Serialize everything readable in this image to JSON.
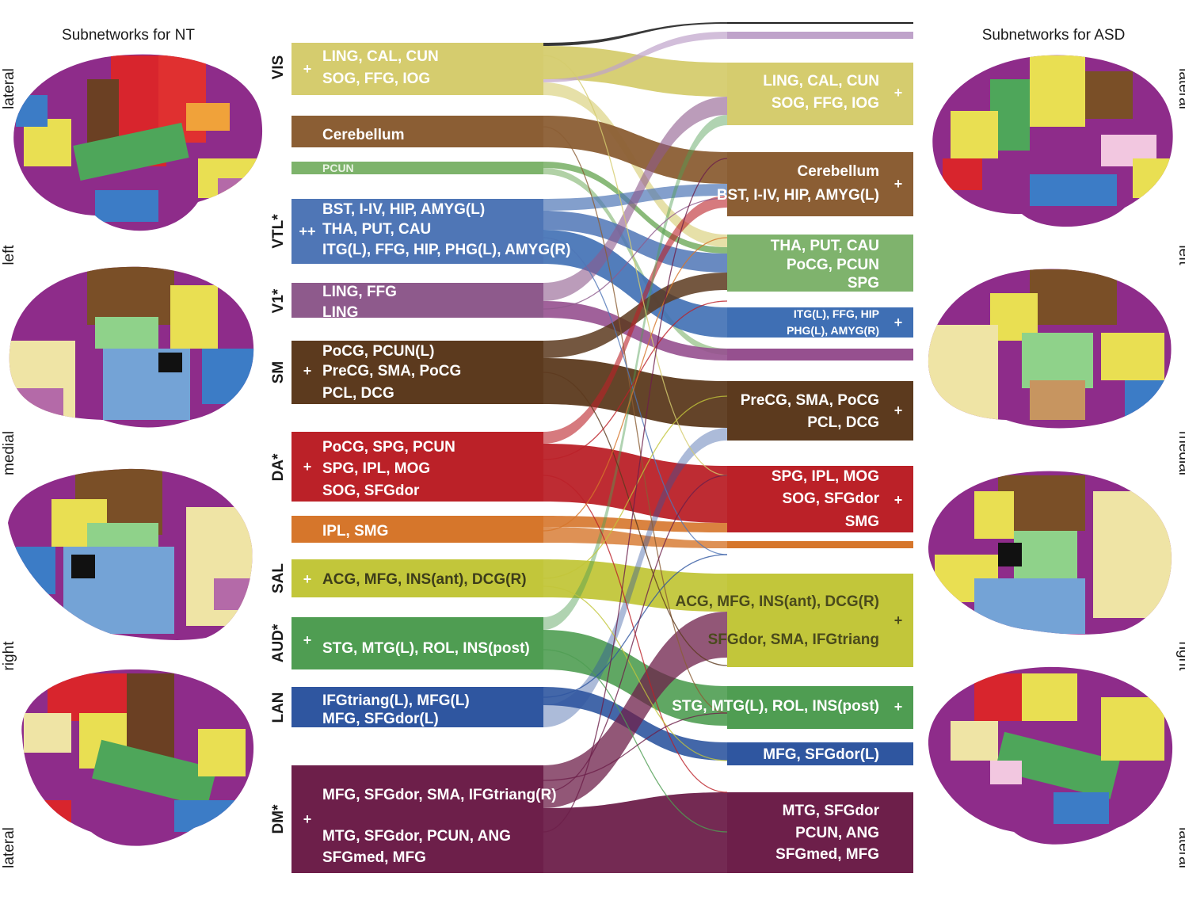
{
  "titles": {
    "left": "Subnetworks for NT",
    "right": "Subnetworks for ASD"
  },
  "view_labels": {
    "left": [
      "lateral",
      "left",
      "medial",
      "right",
      "lateral"
    ],
    "right": [
      "lateral",
      "left",
      "medial",
      "right",
      "lateral"
    ]
  },
  "colors": {
    "VIS": "#d5cc6e",
    "CER": "#8b5e34",
    "PCUN": "#7db36b",
    "VTL": "#4f76b6",
    "V1": "#8e5a8c",
    "SM": "#5c3a1e",
    "DA": "#bb2128",
    "SMG": "#d6762b",
    "SAL": "#c2c63a",
    "AUD": "#4f9d52",
    "LAN": "#2f56a0",
    "DM": "#6d1f4a",
    "ASD_BLACK": "#222222",
    "ASD_LILAC": "#bfa3ca",
    "ASD_VTL": "#3f6fb4",
    "ASD_V1": "#96508f",
    "ASD_GREEN": "#7fb36d",
    "ASD_LAN": "#2f56a0"
  },
  "left_groups": [
    {
      "name": "VIS",
      "marker": "+"
    },
    {
      "name": "VTL*",
      "marker": "++"
    },
    {
      "name": "V1*",
      "marker": ""
    },
    {
      "name": "SM",
      "marker": "+"
    },
    {
      "name": "DA*",
      "marker": "+"
    },
    {
      "name": "SAL",
      "marker": "+"
    },
    {
      "name": "AUD*",
      "marker": "+"
    },
    {
      "name": "LAN",
      "marker": ""
    },
    {
      "name": "DM*",
      "marker": "+"
    }
  ],
  "left_nodes": {
    "vis": {
      "l1": "LING, CAL, CUN",
      "l2": "SOG, FFG, IOG"
    },
    "cer": {
      "l1": "Cerebellum"
    },
    "pcun": {
      "l1": "PCUN"
    },
    "vtl": {
      "l1": "BST, I-IV, HIP, AMYG(L)",
      "l2": "THA, PUT, CAU",
      "l3": "ITG(L), FFG, HIP, PHG(L), AMYG(R)"
    },
    "v1": {
      "l1": "LING, FFG",
      "l2": "LING"
    },
    "sm": {
      "l1": "PoCG, PCUN(L)",
      "l2": "PreCG, SMA, PoCG",
      "l3": "PCL, DCG"
    },
    "da": {
      "l1": "PoCG, SPG, PCUN",
      "l2": "SPG, IPL, MOG",
      "l3": "SOG, SFGdor"
    },
    "smg": {
      "l1": "IPL, SMG"
    },
    "sal": {
      "l1": "ACG, MFG, INS(ant), DCG(R)"
    },
    "aud": {
      "l1": "STG, MTG(L), ROL, INS(post)"
    },
    "lan": {
      "l1": "IFGtriang(L), MFG(L)",
      "l2": "MFG, SFGdor(L)"
    },
    "dm": {
      "l1": "MFG, SFGdor, SMA,  IFGtriang(R)",
      "l2": "MTG, SFGdor, PCUN, ANG",
      "l3": "SFGmed, MFG"
    }
  },
  "right_nodes": {
    "vis": {
      "l1": "LING, CAL, CUN",
      "l2": "SOG, FFG, IOG",
      "marker": "+"
    },
    "cer": {
      "l1": "Cerebellum",
      "l2": "BST, I-IV, HIP, AMYG(L)",
      "marker": "+"
    },
    "tha": {
      "l1": "THA, PUT, CAU",
      "l2": "PoCG, PCUN",
      "l3": "SPG"
    },
    "vtl": {
      "l1": "ITG(L), FFG, HIP",
      "l2": "PHG(L), AMYG(R)",
      "marker": "+"
    },
    "sm": {
      "l1": "PreCG, SMA, PoCG",
      "l2": "PCL, DCG",
      "marker": "+"
    },
    "da": {
      "l1": "SPG, IPL, MOG",
      "l2": "SOG, SFGdor",
      "l3": "SMG",
      "marker": "+"
    },
    "sal": {
      "l1": "ACG, MFG, INS(ant), DCG(R)",
      "l2": "SFGdor, SMA,  IFGtriang",
      "marker": "+"
    },
    "aud": {
      "l1": "STG, MTG(L), ROL, INS(post)",
      "marker": "+"
    },
    "lan": {
      "l1": "MFG, SFGdor(L)"
    },
    "dm": {
      "l1": "MTG, SFGdor",
      "l2": "PCUN, ANG",
      "l3": "SFGmed, MFG"
    }
  }
}
